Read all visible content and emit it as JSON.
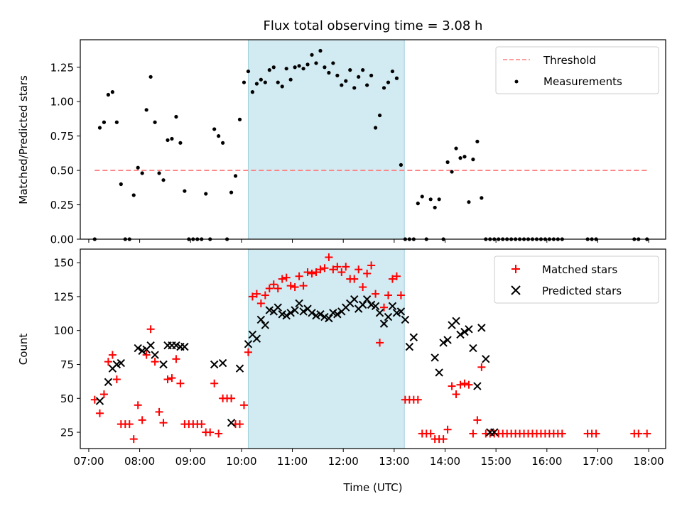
{
  "chart_data": [
    {
      "type": "scatter",
      "title": "Flux total observing time = 3.08 h",
      "ylabel": "Matched/Predicted stars",
      "xlabel": "",
      "xlim": [
        "06:50",
        "18:20"
      ],
      "ylim": [
        0,
        1.45
      ],
      "yticks": [
        "0.00",
        "0.25",
        "0.50",
        "0.75",
        "1.00",
        "1.25"
      ],
      "shaded_span": [
        "10:08",
        "13:12"
      ],
      "shade_color": "#add8e6",
      "legend_position": "top-right",
      "legend": [
        "Threshold",
        "Measurements"
      ],
      "threshold": {
        "name": "Threshold",
        "value": 0.5,
        "x_range": [
          "07:07",
          "18:00"
        ],
        "color": "#ff7f7f"
      },
      "series": [
        {
          "name": "Measurements",
          "color": "#000000",
          "x": [
            "07:07",
            "07:13",
            "07:18",
            "07:23",
            "07:28",
            "07:33",
            "07:38",
            "07:43",
            "07:48",
            "07:53",
            "07:58",
            "08:03",
            "08:08",
            "08:13",
            "08:18",
            "08:23",
            "08:28",
            "08:33",
            "08:38",
            "08:43",
            "08:48",
            "08:53",
            "08:58",
            "09:03",
            "09:08",
            "09:13",
            "09:18",
            "09:23",
            "09:28",
            "09:33",
            "09:38",
            "09:43",
            "09:48",
            "09:53",
            "09:58",
            "10:03",
            "10:08",
            "10:13",
            "10:18",
            "10:23",
            "10:28",
            "10:33",
            "10:38",
            "10:43",
            "10:48",
            "10:53",
            "10:58",
            "11:03",
            "11:08",
            "11:13",
            "11:18",
            "11:23",
            "11:28",
            "11:33",
            "11:38",
            "11:43",
            "11:48",
            "11:53",
            "11:58",
            "12:03",
            "12:08",
            "12:13",
            "12:18",
            "12:23",
            "12:28",
            "12:33",
            "12:38",
            "12:43",
            "12:48",
            "12:53",
            "12:58",
            "13:03",
            "13:08",
            "13:13",
            "13:18",
            "13:23",
            "13:28",
            "13:33",
            "13:38",
            "13:43",
            "13:48",
            "13:53",
            "13:58",
            "14:03",
            "14:08",
            "14:13",
            "14:18",
            "14:23",
            "14:28",
            "14:33",
            "14:38",
            "14:43",
            "14:48",
            "14:53",
            "14:58",
            "15:03",
            "15:08",
            "15:13",
            "15:18",
            "15:23",
            "15:28",
            "15:33",
            "15:38",
            "15:43",
            "15:48",
            "15:53",
            "15:58",
            "16:03",
            "16:08",
            "16:13",
            "16:18",
            "16:48",
            "16:53",
            "16:58",
            "17:43",
            "17:48",
            "17:58"
          ],
          "y": [
            0,
            0.81,
            0.85,
            1.05,
            1.07,
            0.85,
            0.4,
            0,
            0,
            0.32,
            0.52,
            0.48,
            0.94,
            1.18,
            0.85,
            0.48,
            0.43,
            0.72,
            0.73,
            0.89,
            0.7,
            0.35,
            0,
            0,
            0,
            0,
            0.33,
            0,
            0.8,
            0.75,
            0.7,
            0,
            0.34,
            0.46,
            0.87,
            1.14,
            1.22,
            1.07,
            1.13,
            1.16,
            1.14,
            1.23,
            1.25,
            1.14,
            1.11,
            1.24,
            1.16,
            1.25,
            1.26,
            1.24,
            1.27,
            1.34,
            1.28,
            1.37,
            1.25,
            1.21,
            1.28,
            1.19,
            1.12,
            1.15,
            1.23,
            1.1,
            1.18,
            1.23,
            1.12,
            1.19,
            0.81,
            0.9,
            1.1,
            1.14,
            1.22,
            1.17,
            0.54,
            0,
            0,
            0,
            0.26,
            0.31,
            0,
            0.29,
            0.23,
            0.29,
            0,
            0.56,
            0.49,
            0.66,
            0.59,
            0.6,
            0.27,
            0.58,
            0.71,
            0.3,
            0,
            0,
            0,
            0,
            0,
            0,
            0,
            0,
            0,
            0,
            0,
            0,
            0,
            0,
            0,
            0,
            0,
            0,
            0,
            0,
            0,
            0,
            0,
            0,
            0
          ]
        }
      ]
    },
    {
      "type": "scatter",
      "title": "",
      "ylabel": "Count",
      "xlabel": "Time (UTC)",
      "xlim": [
        "06:50",
        "18:20"
      ],
      "ylim": [
        13,
        160
      ],
      "yticks": [
        "25",
        "50",
        "75",
        "100",
        "125",
        "150"
      ],
      "xticks": [
        "07:00",
        "08:00",
        "09:00",
        "10:00",
        "11:00",
        "12:00",
        "13:00",
        "14:00",
        "15:00",
        "16:00",
        "17:00",
        "18:00"
      ],
      "shaded_span": [
        "10:08",
        "13:12"
      ],
      "shade_color": "#add8e6",
      "legend_position": "top-right",
      "legend": [
        "Matched stars",
        "Predicted stars"
      ],
      "series": [
        {
          "name": "Matched stars",
          "marker": "+",
          "color": "#ff0000",
          "x": [
            "07:07",
            "07:13",
            "07:18",
            "07:23",
            "07:28",
            "07:33",
            "07:38",
            "07:43",
            "07:48",
            "07:53",
            "07:58",
            "08:03",
            "08:08",
            "08:13",
            "08:18",
            "08:23",
            "08:28",
            "08:33",
            "08:38",
            "08:43",
            "08:48",
            "08:53",
            "08:58",
            "09:03",
            "09:08",
            "09:13",
            "09:18",
            "09:23",
            "09:28",
            "09:33",
            "09:38",
            "09:43",
            "09:48",
            "09:53",
            "09:58",
            "10:03",
            "10:08",
            "10:13",
            "10:18",
            "10:23",
            "10:28",
            "10:33",
            "10:38",
            "10:43",
            "10:48",
            "10:53",
            "10:58",
            "11:03",
            "11:08",
            "11:13",
            "11:18",
            "11:23",
            "11:28",
            "11:33",
            "11:38",
            "11:43",
            "11:48",
            "11:53",
            "11:58",
            "12:03",
            "12:08",
            "12:13",
            "12:18",
            "12:23",
            "12:28",
            "12:33",
            "12:38",
            "12:43",
            "12:48",
            "12:53",
            "12:58",
            "13:03",
            "13:08",
            "13:13",
            "13:18",
            "13:23",
            "13:28",
            "13:33",
            "13:38",
            "13:43",
            "13:48",
            "13:53",
            "13:58",
            "14:03",
            "14:08",
            "14:13",
            "14:18",
            "14:23",
            "14:28",
            "14:33",
            "14:38",
            "14:43",
            "14:48",
            "14:53",
            "14:58",
            "15:03",
            "15:08",
            "15:13",
            "15:18",
            "15:23",
            "15:28",
            "15:33",
            "15:38",
            "15:43",
            "15:48",
            "15:53",
            "15:58",
            "16:03",
            "16:08",
            "16:13",
            "16:18",
            "16:48",
            "16:53",
            "16:58",
            "17:43",
            "17:48",
            "17:58"
          ],
          "y": [
            49,
            39,
            53,
            77,
            82,
            64,
            31,
            31,
            31,
            20,
            45,
            34,
            82,
            101,
            77,
            40,
            32,
            64,
            65,
            79,
            61,
            31,
            31,
            31,
            31,
            31,
            25,
            25,
            61,
            24,
            50,
            50,
            50,
            31,
            31,
            45,
            84,
            125,
            127,
            120,
            126,
            131,
            134,
            131,
            138,
            139,
            133,
            132,
            140,
            133,
            143,
            142,
            143,
            145,
            146,
            154,
            145,
            147,
            143,
            147,
            138,
            138,
            145,
            132,
            142,
            148,
            127,
            91,
            117,
            126,
            138,
            140,
            126,
            49,
            49,
            49,
            49,
            24,
            24,
            24,
            20,
            20,
            20,
            27,
            59,
            53,
            60,
            61,
            60,
            24,
            34,
            73,
            24,
            24,
            24,
            24,
            24,
            24,
            24,
            24,
            24,
            24,
            24,
            24,
            24,
            24,
            24,
            24,
            24,
            24,
            24,
            24,
            24,
            24,
            24,
            24,
            24
          ]
        },
        {
          "name": "Predicted stars",
          "marker": "x",
          "color": "#000000",
          "x": [
            "07:13",
            "07:23",
            "07:28",
            "07:33",
            "07:38",
            "07:58",
            "08:03",
            "08:08",
            "08:13",
            "08:18",
            "08:28",
            "08:33",
            "08:38",
            "08:43",
            "08:48",
            "08:53",
            "09:28",
            "09:38",
            "09:48",
            "09:58",
            "10:08",
            "10:13",
            "10:18",
            "10:23",
            "10:28",
            "10:33",
            "10:38",
            "10:43",
            "10:48",
            "10:53",
            "10:58",
            "11:03",
            "11:08",
            "11:13",
            "11:18",
            "11:23",
            "11:28",
            "11:33",
            "11:38",
            "11:43",
            "11:48",
            "11:53",
            "11:58",
            "12:03",
            "12:08",
            "12:13",
            "12:18",
            "12:23",
            "12:28",
            "12:33",
            "12:38",
            "12:43",
            "12:48",
            "12:53",
            "12:58",
            "13:03",
            "13:08",
            "13:13",
            "13:18",
            "13:23",
            "13:48",
            "13:53",
            "13:58",
            "14:03",
            "14:08",
            "14:13",
            "14:18",
            "14:23",
            "14:28",
            "14:33",
            "14:38",
            "14:43",
            "14:48",
            "14:53",
            "14:58"
          ],
          "y": [
            48,
            62,
            72,
            75,
            76,
            87,
            85,
            86,
            89,
            82,
            75,
            89,
            89,
            89,
            88,
            88,
            75,
            76,
            32,
            72,
            90,
            97,
            94,
            108,
            104,
            115,
            114,
            117,
            112,
            111,
            113,
            115,
            120,
            114,
            116,
            113,
            111,
            112,
            110,
            109,
            113,
            112,
            114,
            117,
            120,
            123,
            116,
            119,
            123,
            119,
            118,
            113,
            105,
            110,
            118,
            113,
            114,
            108,
            88,
            95,
            80,
            69,
            91,
            93,
            104,
            107,
            97,
            99,
            101,
            87,
            59,
            102,
            79,
            25,
            25
          ]
        }
      ]
    }
  ]
}
